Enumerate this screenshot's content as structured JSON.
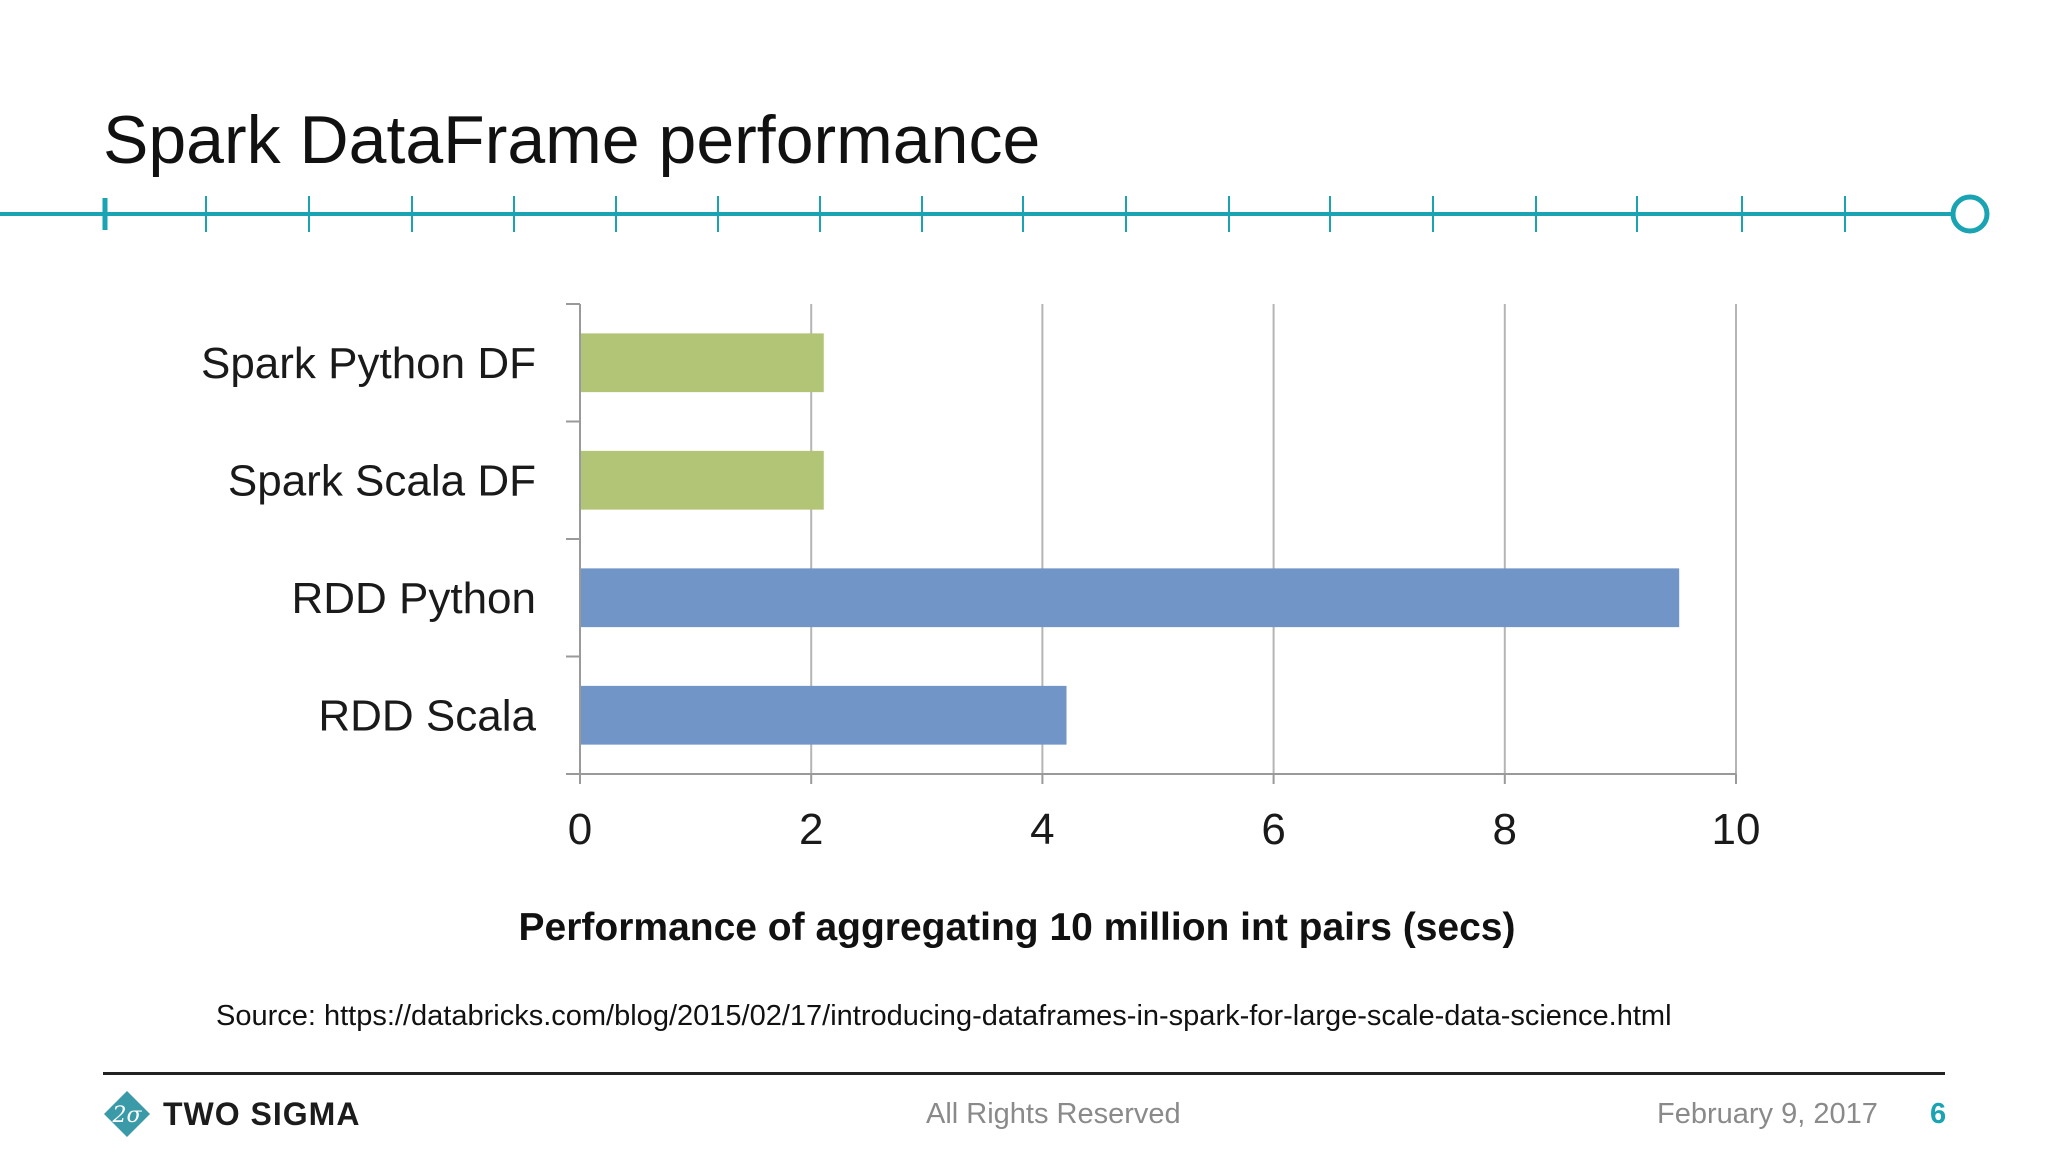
{
  "slide": {
    "title": "Spark DataFrame performance",
    "source": "Source: https://databricks.com/blog/2015/02/17/introducing-dataframes-in-spark-for-large-scale-data-science.html",
    "accent_color": "#1aa3b2"
  },
  "footer": {
    "logo_text": "TWO SIGMA",
    "logo_icon": "two-sigma-diamond-icon",
    "rights": "All Rights Reserved",
    "date": "February 9, 2017",
    "page_number": "6"
  },
  "chart_data": {
    "type": "bar",
    "orientation": "horizontal",
    "categories": [
      "Spark Python DF",
      "Spark Scala DF",
      "RDD Python",
      "RDD Scala"
    ],
    "values": [
      2.1,
      2.1,
      9.5,
      4.2
    ],
    "bar_colors": [
      "#b2c475",
      "#b2c475",
      "#7295c8",
      "#7295c8"
    ],
    "xlabel": "Performance of aggregating 10 million int pairs (secs)",
    "ylabel": "",
    "xlim": [
      0,
      10
    ],
    "xticks": [
      0,
      2,
      4,
      6,
      8,
      10
    ],
    "grid": "vertical"
  }
}
